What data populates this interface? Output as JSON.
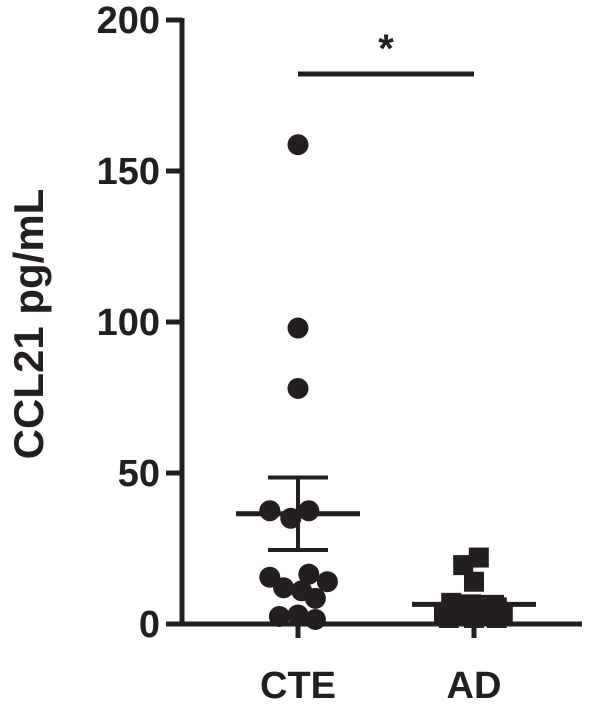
{
  "chart_data": {
    "type": "scatter",
    "title": "",
    "xlabel": "",
    "ylabel": "CCL21 pg/mL",
    "ylim": [
      0,
      200
    ],
    "yticks": [
      "0",
      "50",
      "100",
      "150",
      "200"
    ],
    "categories": [
      "CTE",
      "AD"
    ],
    "color": "#231f20",
    "grid": false,
    "legend": "none",
    "series": [
      {
        "category": "CTE",
        "marker": "circle",
        "mean": 36.5,
        "sem_low": 24.5,
        "sem_high": 48.5,
        "points": [
          {
            "offset": 0.0,
            "value": 158.7
          },
          {
            "offset": 0.0,
            "value": 98.0
          },
          {
            "offset": 0.0,
            "value": 78.0
          },
          {
            "offset": -0.47,
            "value": 37.5
          },
          {
            "offset": 0.18,
            "value": 37.5
          },
          {
            "offset": -0.12,
            "value": 35.0
          },
          {
            "offset": -0.47,
            "value": 15.5
          },
          {
            "offset": 0.18,
            "value": 16.5
          },
          {
            "offset": -0.24,
            "value": 12.0
          },
          {
            "offset": 0.49,
            "value": 14.0
          },
          {
            "offset": 0.06,
            "value": 11.0
          },
          {
            "offset": 0.29,
            "value": 8.5
          },
          {
            "offset": -0.31,
            "value": 2.5
          },
          {
            "offset": 0.0,
            "value": 3.0
          },
          {
            "offset": 0.29,
            "value": 1.5
          }
        ]
      },
      {
        "category": "AD",
        "marker": "square",
        "mean": 6.5,
        "sem_low": 4.0,
        "sem_high": 9.0,
        "points": [
          {
            "offset": 0.08,
            "value": 22.0
          },
          {
            "offset": -0.18,
            "value": 19.5
          },
          {
            "offset": 0.0,
            "value": 14.0
          },
          {
            "offset": -0.38,
            "value": 7.0
          },
          {
            "offset": -0.05,
            "value": 6.5
          },
          {
            "offset": 0.38,
            "value": 5.5
          },
          {
            "offset": -0.28,
            "value": 5.0
          },
          {
            "offset": 0.15,
            "value": 5.0
          },
          {
            "offset": -0.5,
            "value": 3.5
          },
          {
            "offset": -0.18,
            "value": 3.0
          },
          {
            "offset": 0.08,
            "value": 3.0
          },
          {
            "offset": 0.28,
            "value": 3.5
          },
          {
            "offset": 0.48,
            "value": 3.0
          },
          {
            "offset": -0.42,
            "value": 2.0
          },
          {
            "offset": 0.0,
            "value": 2.0
          },
          {
            "offset": 0.38,
            "value": 2.0
          }
        ]
      }
    ],
    "significance": {
      "label": "*",
      "from": "CTE",
      "to": "AD"
    }
  }
}
